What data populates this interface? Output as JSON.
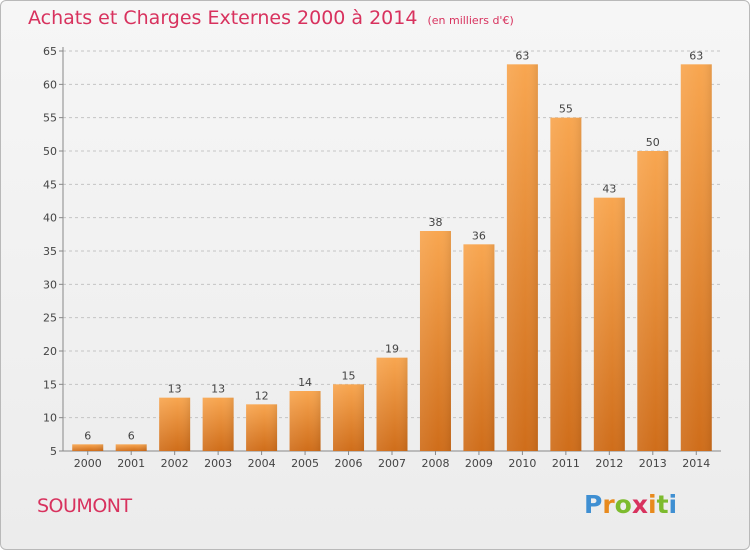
{
  "header": {
    "title": "Achats et Charges Externes 2000 à 2014",
    "unit": "(en milliers d'€)"
  },
  "footer": {
    "commune": "SOUMONT",
    "logo_text": "Proxiti"
  },
  "colors": {
    "accent": "#d8325e",
    "bar_light": "#f7a24e",
    "bar_dark": "#cf6d1a"
  },
  "chart_data": {
    "type": "bar",
    "title": "Achats et Charges Externes 2000 à 2014",
    "subtitle": "(en milliers d'€)",
    "categories": [
      "2000",
      "2001",
      "2002",
      "2003",
      "2004",
      "2005",
      "2006",
      "2007",
      "2008",
      "2009",
      "2010",
      "2011",
      "2012",
      "2013",
      "2014"
    ],
    "values": [
      6,
      6,
      13,
      13,
      12,
      14,
      15,
      19,
      38,
      36,
      63,
      55,
      43,
      50,
      63
    ],
    "yticks": [
      5,
      10,
      15,
      20,
      25,
      30,
      35,
      40,
      45,
      50,
      55,
      60,
      65
    ],
    "ylim": [
      5,
      65
    ],
    "grid": "horizontal-dashed",
    "data_labels": true,
    "legend": false
  }
}
